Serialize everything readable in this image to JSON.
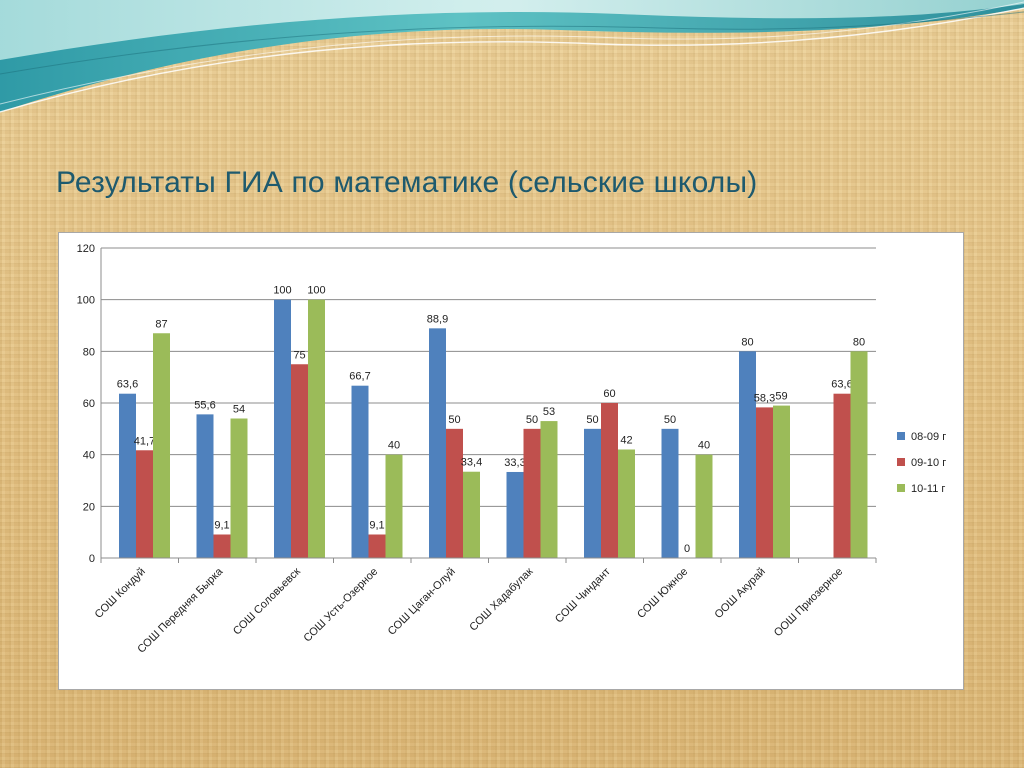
{
  "slide": {
    "title": "Результаты ГИА по математике (сельские школы)"
  },
  "chart_data": {
    "type": "bar",
    "title": "",
    "xlabel": "",
    "ylabel": "",
    "ylim": [
      0,
      120
    ],
    "yticks": [
      0,
      20,
      40,
      60,
      80,
      100,
      120
    ],
    "grid": true,
    "legend_position": "right",
    "categories": [
      "СОШ Кондуй",
      "СОШ Передняя Бырка",
      "СОШ Соловьевск",
      "СОШ Усть-Озерное",
      "СОШ Цаган-Олуй",
      "СОШ Хадабулак",
      "СОШ Чиндант",
      "СОШ Южное",
      "ООШ Акурай",
      "ООШ Приозерное"
    ],
    "series": [
      {
        "name": "08-09 г",
        "color": "#4f81bd",
        "values": [
          63.6,
          55.6,
          100,
          66.7,
          88.9,
          33.3,
          50,
          50,
          80,
          null
        ],
        "labels": [
          "63,6",
          "55,6",
          "100",
          "66,7",
          "88,9",
          "33,3",
          "50",
          "50",
          "80",
          ""
        ]
      },
      {
        "name": "09-10 г",
        "color": "#c0504d",
        "values": [
          41.7,
          9.1,
          75,
          9.1,
          50,
          50,
          60,
          0,
          58.3,
          63.6
        ],
        "labels": [
          "41,7",
          "9,1",
          "75",
          "9,1",
          "50",
          "50",
          "60",
          "0",
          "58,3",
          "63,6"
        ]
      },
      {
        "name": "10-11 г",
        "color": "#9bbb59",
        "values": [
          87,
          54,
          100,
          40,
          33.4,
          53,
          42,
          40,
          59,
          80
        ],
        "labels": [
          "87",
          "54",
          "100",
          "40",
          "33,4",
          "53",
          "42",
          "40",
          "59",
          "80"
        ]
      }
    ]
  }
}
